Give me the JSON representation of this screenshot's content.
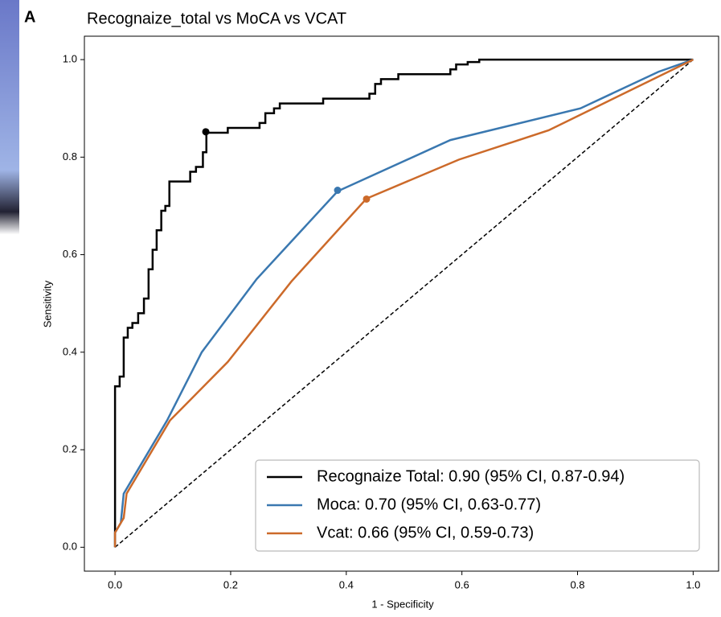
{
  "panel_label": "A",
  "chart_data": {
    "type": "roc",
    "title": "Recognaize_total vs MoCA vs VCAT",
    "x_label": "1 - Specificity",
    "y_label": "Sensitivity",
    "xlim": [
      -0.053,
      1.044
    ],
    "ylim": [
      -0.049,
      1.048
    ],
    "xticks": [
      {
        "value": 0,
        "label": "0.0"
      },
      {
        "value": 0.2,
        "label": "0.2"
      },
      {
        "value": 0.4,
        "label": "0.4"
      },
      {
        "value": 0.6,
        "label": "0.6"
      },
      {
        "value": 0.8,
        "label": "0.8"
      },
      {
        "value": 1,
        "label": "1.0"
      }
    ],
    "yticks": [
      {
        "value": 0,
        "label": "0.0"
      },
      {
        "value": 0.2,
        "label": "0.2"
      },
      {
        "value": 0.4,
        "label": "0.4"
      },
      {
        "value": 0.6,
        "label": "0.6"
      },
      {
        "value": 0.8,
        "label": "0.8"
      },
      {
        "value": 1,
        "label": "1.0"
      }
    ],
    "legend": "lower right",
    "chance_line": {
      "x": [
        0,
        1
      ],
      "values": [
        0,
        1
      ],
      "color": "#000000"
    },
    "series": [
      {
        "name": "Recognaize Total: 0.90 (95% CI, 0.87-0.94)",
        "color": "#000000",
        "x": [
          0,
          0,
          0.008,
          0.008,
          0.015,
          0.015,
          0.022,
          0.022,
          0.03,
          0.03,
          0.04,
          0.04,
          0.05,
          0.05,
          0.058,
          0.058,
          0.065,
          0.065,
          0.072,
          0.072,
          0.08,
          0.08,
          0.087,
          0.087,
          0.094,
          0.094,
          0.13,
          0.13,
          0.14,
          0.14,
          0.152,
          0.152,
          0.158,
          0.158,
          0.195,
          0.195,
          0.25,
          0.25,
          0.26,
          0.26,
          0.275,
          0.275,
          0.285,
          0.285,
          0.36,
          0.36,
          0.44,
          0.44,
          0.45,
          0.45,
          0.46,
          0.46,
          0.49,
          0.49,
          0.58,
          0.58,
          0.59,
          0.59,
          0.61,
          0.61,
          0.63,
          0.63,
          1
        ],
        "values": [
          0,
          0.33,
          0.33,
          0.35,
          0.35,
          0.43,
          0.43,
          0.45,
          0.45,
          0.46,
          0.46,
          0.48,
          0.48,
          0.51,
          0.51,
          0.57,
          0.57,
          0.61,
          0.61,
          0.65,
          0.65,
          0.69,
          0.69,
          0.7,
          0.7,
          0.75,
          0.75,
          0.77,
          0.77,
          0.78,
          0.78,
          0.81,
          0.81,
          0.85,
          0.85,
          0.86,
          0.86,
          0.87,
          0.87,
          0.89,
          0.89,
          0.9,
          0.9,
          0.91,
          0.91,
          0.92,
          0.92,
          0.93,
          0.93,
          0.95,
          0.95,
          0.96,
          0.96,
          0.97,
          0.97,
          0.98,
          0.98,
          0.99,
          0.99,
          0.995,
          0.995,
          1,
          1
        ],
        "marker": {
          "x": 0.157,
          "y": 0.852
        }
      },
      {
        "name": "Moca: 0.70 (95% CI, 0.63-0.77)",
        "color": "#3a78b0",
        "x": [
          0,
          0,
          0.01,
          0.015,
          0.03,
          0.09,
          0.15,
          0.245,
          0.385,
          0.58,
          0.805,
          0.94,
          1
        ],
        "values": [
          0,
          0.03,
          0.05,
          0.11,
          0.14,
          0.26,
          0.4,
          0.55,
          0.73,
          0.835,
          0.9,
          0.975,
          1
        ],
        "marker": {
          "x": 0.385,
          "y": 0.732
        }
      },
      {
        "name": "Vcat: 0.66 (95% CI, 0.59-0.73)",
        "color": "#cc6a2a",
        "x": [
          0,
          0,
          0.015,
          0.02,
          0.095,
          0.195,
          0.305,
          0.435,
          0.595,
          0.75,
          1
        ],
        "values": [
          0,
          0.03,
          0.06,
          0.11,
          0.26,
          0.38,
          0.545,
          0.715,
          0.795,
          0.855,
          1
        ],
        "marker": {
          "x": 0.435,
          "y": 0.714
        }
      }
    ]
  }
}
